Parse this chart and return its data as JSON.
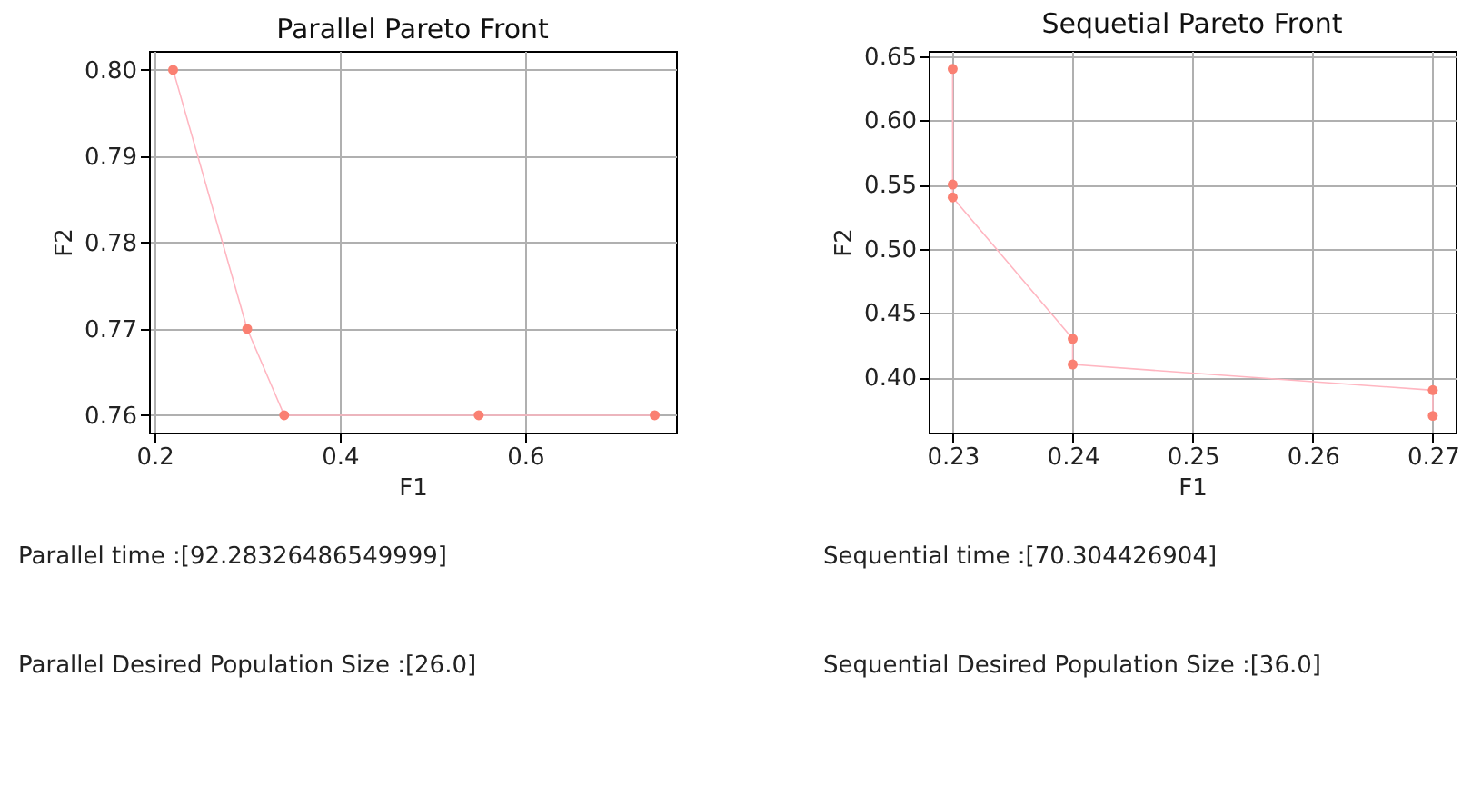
{
  "chart_data": [
    {
      "type": "line",
      "title": "Parallel Pareto Front",
      "xlabel": "F1",
      "ylabel": "F2",
      "x": [
        0.22,
        0.3,
        0.34,
        0.55,
        0.74
      ],
      "xlim": [
        0.194,
        0.763
      ],
      "xticks": [
        0.2,
        0.4,
        0.6
      ],
      "ylim": [
        0.758,
        0.8022
      ],
      "yticks": [
        0.76,
        0.77,
        0.78,
        0.79,
        {
          "value": 0.8,
          "label": "0.80"
        }
      ],
      "grid": true,
      "series": [
        {
          "color": "#ffb6c1",
          "values": [
            0.8,
            0.77,
            0.76,
            0.76,
            0.76
          ]
        },
        {
          "type": "scatter",
          "color": "#fa8072",
          "values": [
            0.8,
            0.77,
            0.76,
            0.76,
            0.76
          ],
          "marker": "circle"
        }
      ],
      "annotations": [
        "Parallel time :[92.28326486549999]",
        "Parallel Desired Population Size :[26.0]"
      ]
    },
    {
      "type": "line",
      "title": "Sequetial Pareto Front",
      "xlabel": "F1",
      "ylabel": "F2",
      "x": [
        0.23,
        0.23,
        0.23,
        0.24,
        0.24,
        0.27,
        0.27
      ],
      "xlim": [
        0.228,
        0.2719
      ],
      "xticks": [
        0.23,
        0.24,
        0.25,
        0.26,
        0.27
      ],
      "ylim": [
        0.357,
        0.654
      ],
      "yticks": [
        {
          "value": 0.4,
          "label": "0.40"
        },
        0.45,
        {
          "value": 0.5,
          "label": "0.50"
        },
        0.55,
        {
          "value": 0.6,
          "label": "0.60"
        },
        0.65
      ],
      "grid": true,
      "series": [
        {
          "color": "#ffb6c1",
          "values": [
            0.64,
            0.55,
            0.54,
            0.43,
            0.41,
            0.39,
            0.37
          ]
        },
        {
          "type": "scatter",
          "color": "#fa8072",
          "values": [
            0.64,
            0.55,
            0.54,
            0.43,
            0.41,
            0.39,
            0.37
          ],
          "marker": "circle"
        }
      ],
      "annotations": [
        "Sequential time :[70.304426904]",
        "Sequential Desired Population Size :[36.0]"
      ]
    }
  ]
}
